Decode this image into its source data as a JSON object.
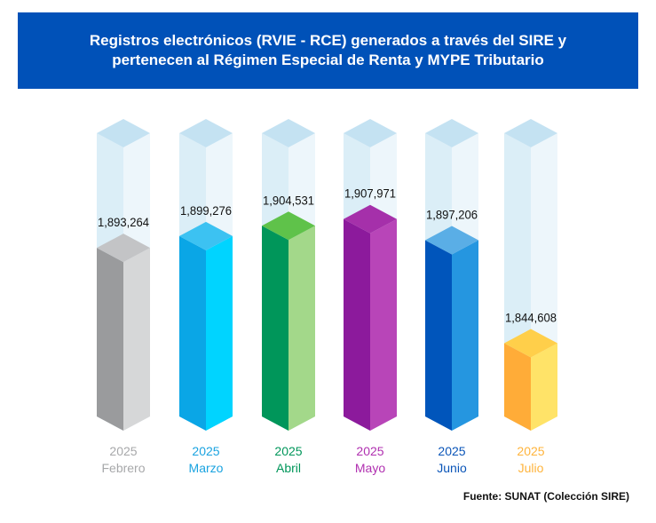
{
  "header": {
    "title": "Registros electrónicos (RVIE - RCE) generados a través del SIRE y pertenecen al Régimen Especial de Renta y MYPE Tributario"
  },
  "source": "Fuente: SUNAT (Colección SIRE)",
  "chart_data": {
    "type": "bar",
    "title": "Registros electrónicos (RVIE - RCE) generados a través del SIRE y pertenecen al Régimen Especial de Renta y MYPE Tributario",
    "categories": [
      {
        "year": "2025",
        "month": "Febrero"
      },
      {
        "year": "2025",
        "month": "Marzo"
      },
      {
        "year": "2025",
        "month": "Abril"
      },
      {
        "year": "2025",
        "month": "Mayo"
      },
      {
        "year": "2025",
        "month": "Junio"
      },
      {
        "year": "2025",
        "month": "Julio"
      }
    ],
    "values": [
      1893264,
      1899276,
      1904531,
      1907971,
      1897206,
      1844608
    ],
    "value_labels": [
      "1,893,264",
      "1,899,276",
      "1,904,531",
      "1,907,971",
      "1,897,206",
      "1,844,608"
    ],
    "colors": [
      {
        "front": "#9a9b9d",
        "side": "#d6d7d8",
        "top": "#c3c4c6",
        "label": "#a7a8aa"
      },
      {
        "front": "#0aa6e6",
        "side": "#00d4ff",
        "top": "#3cc2f2",
        "label": "#1aa3e0"
      },
      {
        "front": "#00965a",
        "side": "#a3d88a",
        "top": "#5fc24a",
        "label": "#00965a"
      },
      {
        "front": "#8c1a9c",
        "side": "#b845b8",
        "top": "#a530aa",
        "label": "#b030b0"
      },
      {
        "front": "#0055bb",
        "side": "#2596e0",
        "top": "#5aaee6",
        "label": "#0a55b8"
      },
      {
        "front": "#ffac38",
        "side": "#ffe368",
        "top": "#ffcf4a",
        "label": "#ffb43c"
      }
    ],
    "ghost_colors": {
      "front": "#dbeef7",
      "side": "#edf6fb",
      "top": "#c4e2f2"
    },
    "ylim": [
      1800000,
      1945000
    ],
    "xlabel": "",
    "ylabel": ""
  }
}
